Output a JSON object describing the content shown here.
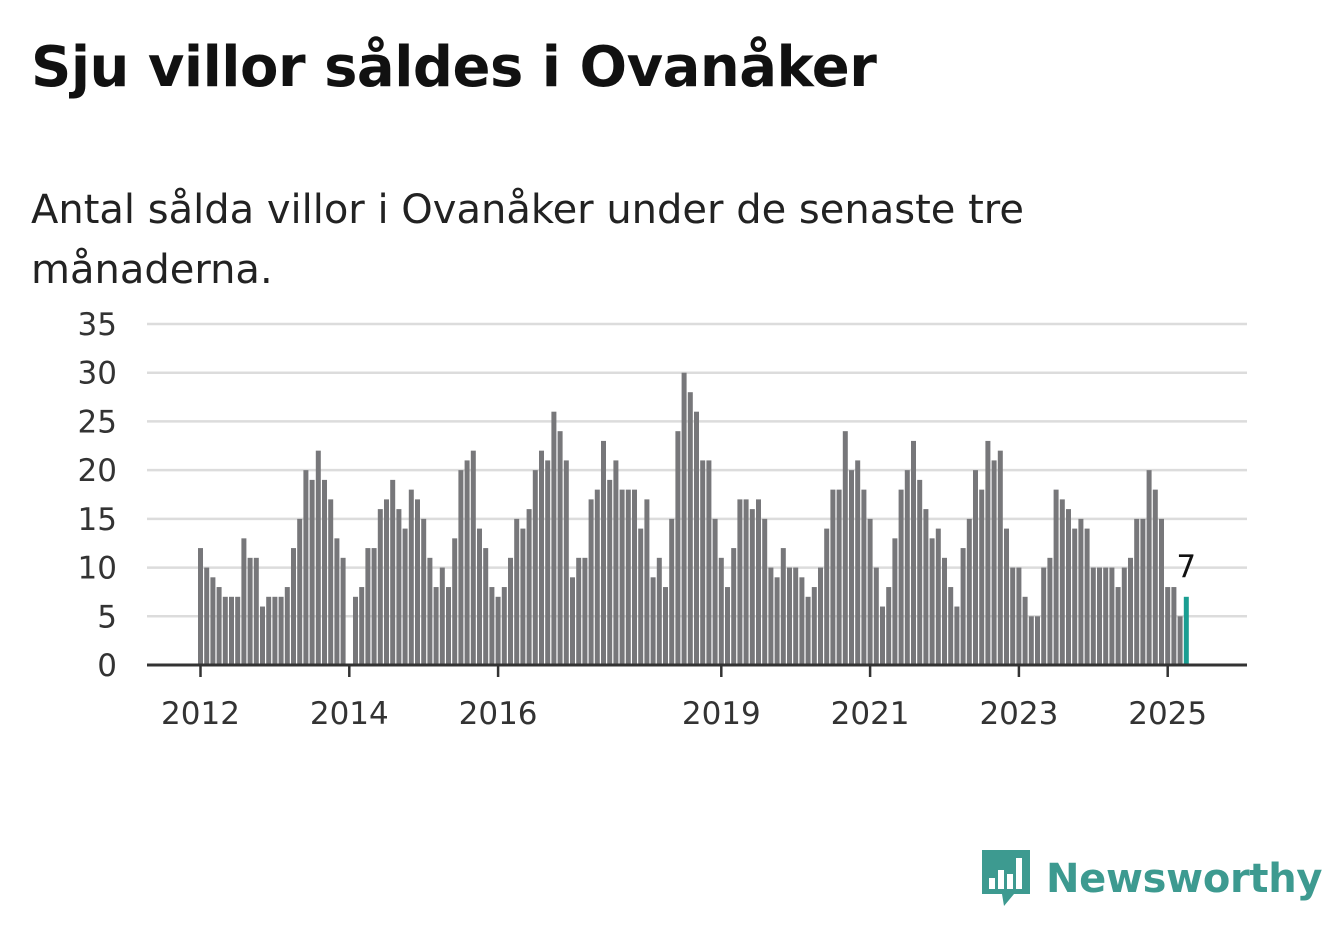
{
  "header": {
    "title": "Sju villor såldes i Ovanåker",
    "subtitle": "Antal sålda villor i Ovanåker under de senaste tre månaderna."
  },
  "branding": {
    "logo_text": "Newsworthy",
    "logo_icon": "bar-chart-speech-bubble-icon"
  },
  "colors": {
    "bar": "#77777a",
    "highlight": "#1a9e92",
    "grid": "#dcdcdc",
    "axis": "#333333",
    "brand": "#3d9a90"
  },
  "chart_data": {
    "type": "bar",
    "ylim": [
      0,
      35
    ],
    "yticks": [
      0,
      5,
      10,
      15,
      20,
      25,
      30,
      35
    ],
    "xticks": [
      "2012",
      "2014",
      "2016",
      "2019",
      "2021",
      "2023",
      "2025"
    ],
    "x_start": "2012-01",
    "values": [
      12,
      10,
      9,
      8,
      7,
      7,
      7,
      13,
      11,
      11,
      6,
      7,
      7,
      7,
      8,
      12,
      15,
      20,
      19,
      22,
      19,
      17,
      13,
      11,
      0,
      7,
      8,
      12,
      12,
      16,
      17,
      19,
      16,
      14,
      18,
      17,
      15,
      11,
      8,
      10,
      8,
      13,
      20,
      21,
      22,
      14,
      12,
      8,
      7,
      8,
      11,
      15,
      14,
      16,
      20,
      22,
      21,
      26,
      24,
      21,
      9,
      11,
      11,
      17,
      18,
      23,
      19,
      21,
      18,
      18,
      18,
      14,
      17,
      9,
      11,
      8,
      15,
      24,
      30,
      28,
      26,
      21,
      21,
      15,
      11,
      8,
      12,
      17,
      17,
      16,
      17,
      15,
      10,
      9,
      12,
      10,
      10,
      9,
      7,
      8,
      10,
      14,
      18,
      18,
      24,
      20,
      21,
      18,
      15,
      10,
      6,
      8,
      13,
      18,
      20,
      23,
      19,
      16,
      13,
      14,
      11,
      8,
      6,
      12,
      15,
      20,
      18,
      23,
      21,
      22,
      14,
      10,
      10,
      7,
      5,
      5,
      10,
      11,
      18,
      17,
      16,
      14,
      15,
      14,
      10,
      10,
      10,
      10,
      8,
      10,
      11,
      15,
      15,
      20,
      18,
      15,
      8,
      8,
      5,
      7
    ],
    "highlight_label": "7",
    "grid": true,
    "legend": "none"
  }
}
